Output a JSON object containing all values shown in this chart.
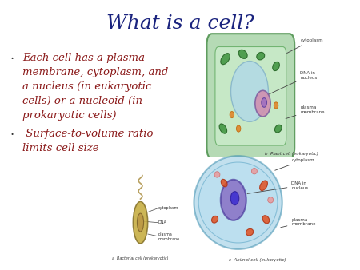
{
  "title": "What is a cell?",
  "title_color": "#1a237e",
  "title_fontsize": 18,
  "background_color": "#FFFFFF",
  "text_color": "#8B1A1A",
  "bullet_lines_1": [
    "Each cell has a plasma",
    "membrane, cytoplasm, and",
    "a nucleus (in eukaryotic",
    "cells) or a nucleoid (in",
    "prokaryotic cells)"
  ],
  "bullet_lines_2": [
    " Surface-to-volume ratio",
    "limits cell size"
  ],
  "bullet_fontsize": 9.5,
  "plant_label": "b  Plant cell (eukaryotic)",
  "animal_label": "c  Animal cell (eukaryotic)",
  "bacteria_label": "a  Bacterial cell (prokaryotic)"
}
